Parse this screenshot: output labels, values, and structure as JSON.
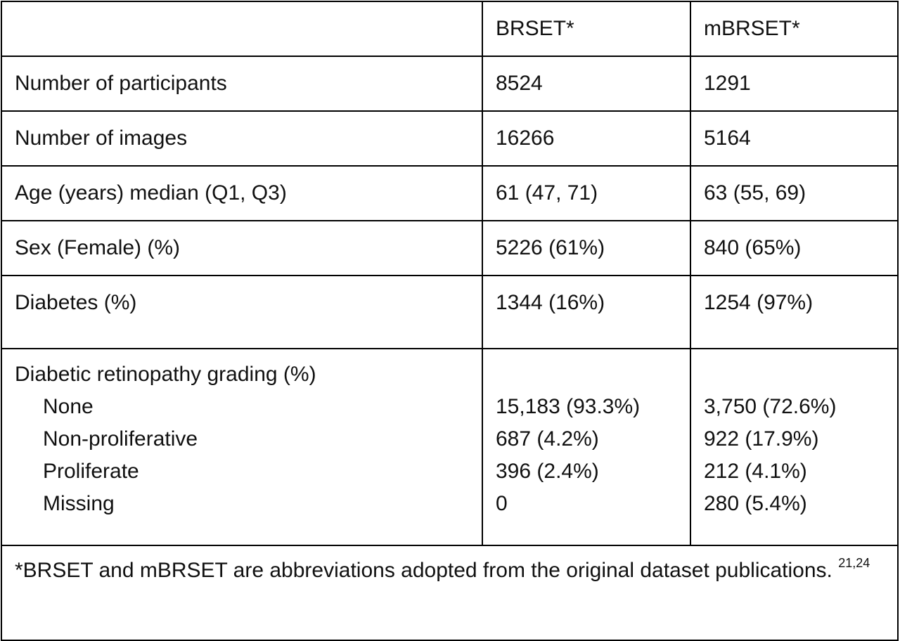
{
  "header": {
    "col_label": "",
    "col_brset": "BRSET*",
    "col_mbrset": "mBRSET*"
  },
  "rows": [
    {
      "label": "Number of participants",
      "brset": "8524",
      "mbrset": "1291"
    },
    {
      "label": "Number of images",
      "brset": "16266",
      "mbrset": "5164"
    },
    {
      "label": "Age (years) median (Q1, Q3)",
      "brset": "61 (47, 71)",
      "mbrset": "63 (55, 69)"
    },
    {
      "label": "Sex (Female) (%)",
      "brset": "5226 (61%)",
      "mbrset": "840 (65%)"
    },
    {
      "label": "Diabetes (%)",
      "brset": "1344 (16%)",
      "mbrset": "1254 (97%)"
    }
  ],
  "grading": {
    "title": "Diabetic retinopathy grading (%)",
    "items": [
      {
        "label": "None",
        "brset": "15,183 (93.3%)",
        "mbrset": "3,750 (72.6%)"
      },
      {
        "label": "Non-proliferative",
        "brset": "687 (4.2%)",
        "mbrset": "922 (17.9%)"
      },
      {
        "label": "Proliferate",
        "brset": "396 (2.4%)",
        "mbrset": "212 (4.1%)"
      },
      {
        "label": "Missing",
        "brset": "0",
        "mbrset": "280 (5.4%)"
      }
    ]
  },
  "footnote": {
    "text": "*BRSET and mBRSET are abbreviations adopted from the original dataset publications.",
    "refs": "21,24"
  }
}
